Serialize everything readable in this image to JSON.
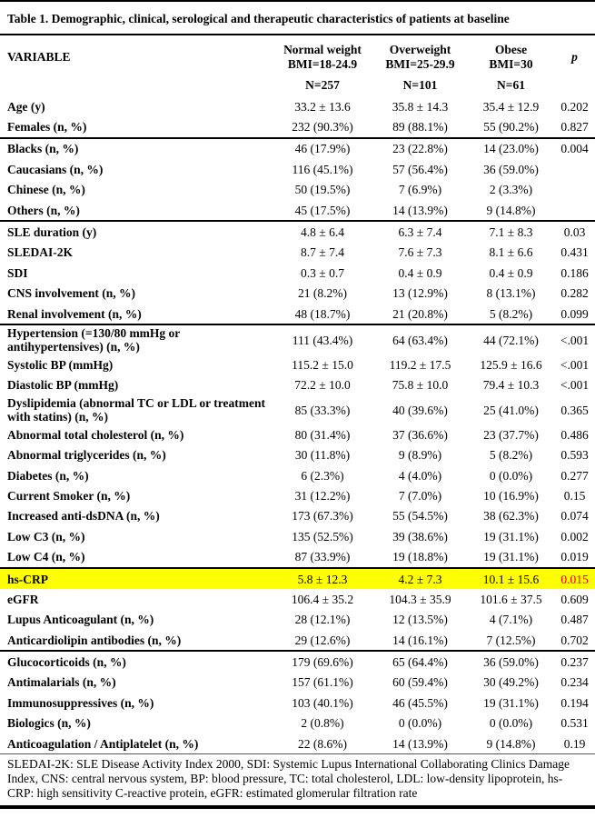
{
  "title": "Table 1. Demographic, clinical, serological and therapeutic characteristics of patients at baseline",
  "header": {
    "variable_label": "VARIABLE",
    "p_label": "p",
    "columns": [
      {
        "name": "Normal weight",
        "bmi": "BMI=18-24.9",
        "n": "N=257"
      },
      {
        "name": "Overweight",
        "bmi": "BMI=25-29.9",
        "n": "N=101"
      },
      {
        "name": "Obese",
        "bmi": "BMI=30",
        "n": "N=61"
      }
    ]
  },
  "colors": {
    "highlight_row_bg": "#ffff00",
    "highlight_p_text": "#e60000"
  },
  "sections": [
    {
      "rows": [
        {
          "label": "Age (y)",
          "values": [
            "33.2 ± 13.6",
            "35.8 ± 14.3",
            "35.4 ± 12.9"
          ],
          "p": "0.202"
        },
        {
          "label": "Females (n, %)",
          "values": [
            "232 (90.3%)",
            "89 (88.1%)",
            "55 (90.2%)"
          ],
          "p": "0.827"
        }
      ]
    },
    {
      "rows": [
        {
          "label": "Blacks (n, %)",
          "values": [
            "46 (17.9%)",
            "23 (22.8%)",
            "14 (23.0%)"
          ],
          "p": "0.004"
        },
        {
          "label": "Caucasians (n, %)",
          "values": [
            "116 (45.1%)",
            "57 (56.4%)",
            "36 (59.0%)"
          ],
          "p": ""
        },
        {
          "label": "Chinese (n, %)",
          "values": [
            "50 (19.5%)",
            "7 (6.9%)",
            "2 (3.3%)"
          ],
          "p": ""
        },
        {
          "label": "Others (n, %)",
          "values": [
            "45 (17.5%)",
            "14 (13.9%)",
            "9 (14.8%)"
          ],
          "p": ""
        }
      ]
    },
    {
      "rows": [
        {
          "label": "SLE duration (y)",
          "values": [
            "4.8 ± 6.4",
            "6.3 ± 7.4",
            "7.1 ± 8.3"
          ],
          "p": "0.03"
        },
        {
          "label": "SLEDAI-2K",
          "values": [
            "8.7 ± 7.4",
            "7.6 ± 7.3",
            "8.1 ± 6.6"
          ],
          "p": "0.431"
        },
        {
          "label": "SDI",
          "values": [
            "0.3 ± 0.7",
            "0.4 ± 0.9",
            "0.4 ± 0.9"
          ],
          "p": "0.186"
        },
        {
          "label": "CNS involvement (n, %)",
          "values": [
            "21 (8.2%)",
            "13 (12.9%)",
            "8 (13.1%)"
          ],
          "p": "0.282"
        },
        {
          "label": "Renal involvement (n, %)",
          "values": [
            "48 (18.7%)",
            "21 (20.8%)",
            "5 (8.2%)"
          ],
          "p": "0.099"
        }
      ]
    },
    {
      "rows": [
        {
          "label": "Hypertension (=130/80 mmHg or antihypertensives) (n, %)",
          "values": [
            "111 (43.4%)",
            "64 (63.4%)",
            "44 (72.1%)"
          ],
          "p": "<.001"
        },
        {
          "label": "Systolic BP (mmHg)",
          "values": [
            "115.2 ± 15.0",
            "119.2 ± 17.5",
            "125.9 ± 16.6"
          ],
          "p": "<.001"
        },
        {
          "label": "Diastolic BP (mmHg)",
          "values": [
            "72.2 ± 10.0",
            "75.8 ± 10.0",
            "79.4 ± 10.3"
          ],
          "p": "<.001"
        },
        {
          "label": "Dyslipidemia (abnormal TC or LDL or treatment with statins) (n, %)",
          "values": [
            "85 (33.3%)",
            "40 (39.6%)",
            "25 (41.0%)"
          ],
          "p": "0.365"
        },
        {
          "label": "Abnormal total cholesterol (n, %)",
          "values": [
            "80 (31.4%)",
            "37 (36.6%)",
            "23 (37.7%)"
          ],
          "p": "0.486"
        },
        {
          "label": "Abnormal triglycerides (n, %)",
          "values": [
            "30 (11.8%)",
            "9 (8.9%)",
            "5 (8.2%)"
          ],
          "p": "0.593"
        },
        {
          "label": "Diabetes (n, %)",
          "values": [
            "6 (2.3%)",
            "4 (4.0%)",
            "0 (0.0%)"
          ],
          "p": "0.277"
        },
        {
          "label": "Current Smoker (n, %)",
          "values": [
            "31 (12.2%)",
            "7 (7.0%)",
            "10 (16.9%)"
          ],
          "p": "0.15"
        },
        {
          "label": "Increased anti-dsDNA (n, %)",
          "values": [
            "173 (67.3%)",
            "55 (54.5%)",
            "38 (62.3%)"
          ],
          "p": "0.074"
        },
        {
          "label": "Low C3 (n, %)",
          "values": [
            "135 (52.5%)",
            "39 (38.6%)",
            "19 (31.1%)"
          ],
          "p": "0.002"
        },
        {
          "label": "Low C4 (n, %)",
          "values": [
            "87 (33.9%)",
            "19 (18.8%)",
            "19 (31.1%)"
          ],
          "p": "0.019"
        }
      ]
    },
    {
      "rows": [
        {
          "label": "hs-CRP",
          "values": [
            "5.8 ± 12.3",
            "4.2 ± 7.3",
            "10.1 ± 15.6"
          ],
          "p": "0.015",
          "highlight": true
        },
        {
          "label": "eGFR",
          "values": [
            "106.4 ± 35.2",
            "104.3 ± 35.9",
            "101.6 ± 37.5"
          ],
          "p": "0.609"
        },
        {
          "label": "Lupus Anticoagulant (n, %)",
          "values": [
            "28 (12.1%)",
            "12 (13.5%)",
            "4 (7.1%)"
          ],
          "p": "0.487"
        },
        {
          "label": "Anticardiolipin antibodies (n, %)",
          "values": [
            "29 (12.6%)",
            "14 (16.1%)",
            "7 (12.5%)"
          ],
          "p": "0.702"
        }
      ]
    },
    {
      "rows": [
        {
          "label": "Glucocorticoids (n, %)",
          "values": [
            "179 (69.6%)",
            "65 (64.4%)",
            "36 (59.0%)"
          ],
          "p": "0.237"
        },
        {
          "label": "Antimalarials (n, %)",
          "values": [
            "157 (61.1%)",
            "60 (59.4%)",
            "30 (49.2%)"
          ],
          "p": "0.234"
        },
        {
          "label": "Immunosuppressives (n, %)",
          "values": [
            "103 (40.1%)",
            "46 (45.5%)",
            "19 (31.1%)"
          ],
          "p": "0.194"
        },
        {
          "label": "Biologics (n, %)",
          "values": [
            "2 (0.8%)",
            "0 (0.0%)",
            "0 (0.0%)"
          ],
          "p": "0.531"
        },
        {
          "label": "Anticoagulation / Antiplatelet (n, %)",
          "values": [
            "22 (8.6%)",
            "14 (13.9%)",
            "9 (14.8%)"
          ],
          "p": "0.19"
        }
      ]
    }
  ],
  "footnote": "SLEDAI-2K: SLE Disease Activity Index 2000, SDI: Systemic Lupus International Collaborating Clinics Damage Index, CNS: central nervous system, BP: blood pressure, TC: total cholesterol, LDL: low-density lipoprotein, hs-CRP: high sensitivity C-reactive protein, eGFR: estimated glomerular filtration rate"
}
